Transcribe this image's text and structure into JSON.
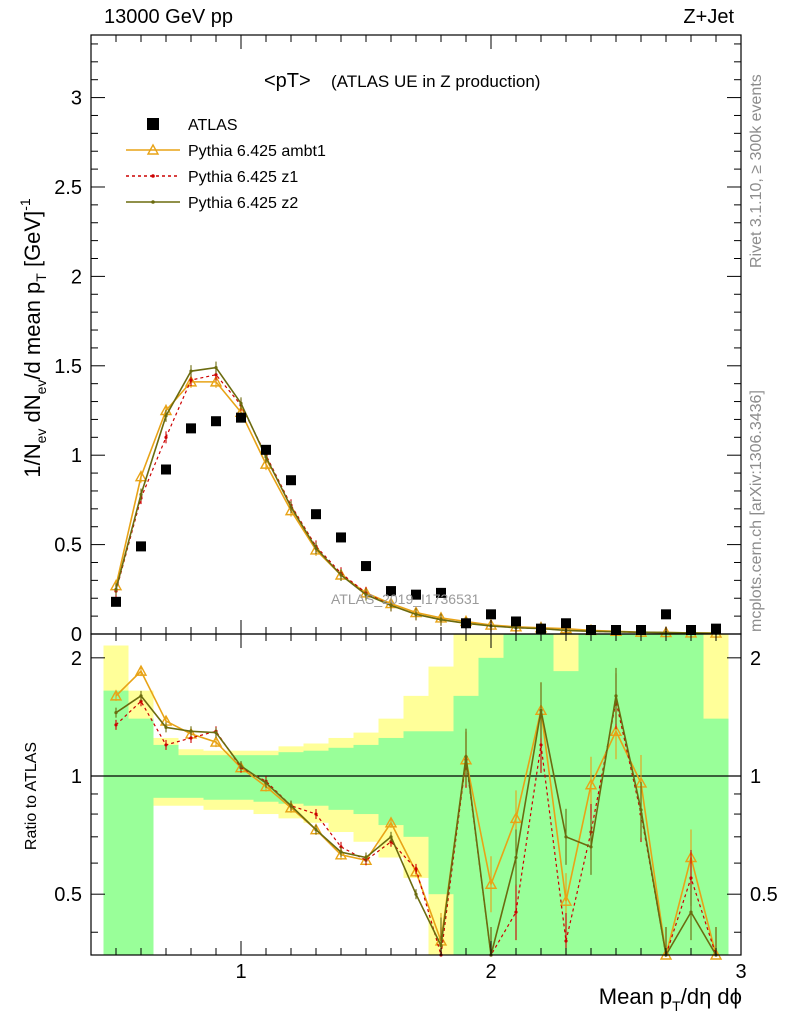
{
  "header": {
    "left": "13000 GeV pp",
    "right": "Z+Jet"
  },
  "side": {
    "rivet": "Rivet 3.1.10, ≥ 300k events",
    "mcplots": "mcplots.cern.ch [arXiv:1306.3436]"
  },
  "plot_title": {
    "main": "<pT>",
    "sub": "(ATLAS UE in Z production)"
  },
  "watermark": "ATLAS_2019_I1736531",
  "legend": [
    {
      "label": "ATLAS",
      "color": "#000000",
      "marker": "square"
    },
    {
      "label": "Pythia 6.425 ambt1",
      "color": "#e8a317",
      "marker": "triangle"
    },
    {
      "label": "Pythia 6.425 z1",
      "color": "#cc0000",
      "marker": "dot"
    },
    {
      "label": "Pythia 6.425 z2",
      "color": "#6b6b0f",
      "marker": "dot"
    }
  ],
  "colors": {
    "band_inner": "#99ff99",
    "band_outer": "#ffff99"
  },
  "chart_data": [
    {
      "type": "scatter",
      "panel": "main",
      "ylabel": "1/N_ev dN_ev/d mean p_T [GeV]^-1",
      "xlim": [
        0.4,
        3.0
      ],
      "ylim": [
        0,
        3.35
      ],
      "yticks": [
        0,
        0.5,
        1,
        1.5,
        2,
        2.5,
        3
      ],
      "ytick_labels": [
        "0",
        "0.5",
        "1",
        "1.5",
        "2",
        "2.5",
        "3"
      ],
      "x": [
        0.5,
        0.6,
        0.7,
        0.8,
        0.9,
        1.0,
        1.1,
        1.2,
        1.3,
        1.4,
        1.5,
        1.6,
        1.7,
        1.8,
        1.9,
        2.0,
        2.1,
        2.2,
        2.3,
        2.4,
        2.5,
        2.6,
        2.7,
        2.8,
        2.9
      ],
      "series": [
        {
          "name": "ATLAS",
          "values": [
            0.18,
            0.49,
            0.92,
            1.15,
            1.19,
            1.21,
            1.03,
            0.86,
            0.67,
            0.54,
            0.38,
            0.24,
            0.22,
            0.23,
            0.06,
            0.11,
            0.07,
            0.03,
            0.06,
            0.02,
            0.01,
            0.01,
            0.11,
            0.01,
            0.03
          ]
        },
        {
          "name": "Pythia 6.425 ambt1",
          "values": [
            0.27,
            0.88,
            1.25,
            1.41,
            1.41,
            1.24,
            0.95,
            0.69,
            0.47,
            0.33,
            0.23,
            0.17,
            0.12,
            0.09,
            0.07,
            0.05,
            0.04,
            0.035,
            0.03,
            0.02,
            0.015,
            0.01,
            0.008,
            0.006,
            0.005
          ]
        },
        {
          "name": "Pythia 6.425 z1",
          "values": [
            0.24,
            0.76,
            1.1,
            1.42,
            1.45,
            1.28,
            1.0,
            0.72,
            0.49,
            0.34,
            0.23,
            0.16,
            0.11,
            0.08,
            0.06,
            0.045,
            0.035,
            0.03,
            0.02,
            0.015,
            0.012,
            0.01,
            0.008,
            0.006,
            0.004
          ]
        },
        {
          "name": "Pythia 6.425 z2",
          "values": [
            0.25,
            0.78,
            1.22,
            1.47,
            1.49,
            1.29,
            0.99,
            0.71,
            0.48,
            0.33,
            0.22,
            0.16,
            0.11,
            0.08,
            0.06,
            0.045,
            0.035,
            0.03,
            0.02,
            0.015,
            0.012,
            0.01,
            0.008,
            0.006,
            0.004
          ]
        }
      ]
    },
    {
      "type": "line",
      "panel": "ratio",
      "ylabel": "Ratio to ATLAS",
      "xlabel": "Mean p_T/dη dϕ",
      "xlim": [
        0.4,
        3.0
      ],
      "ylim": [
        0.35,
        2.3
      ],
      "xticks": [
        1,
        2,
        3
      ],
      "xtick_labels": [
        "1",
        "2",
        "3"
      ],
      "yticks": [
        0.5,
        1,
        2
      ],
      "ytick_labels": [
        "0.5",
        "1",
        "2"
      ],
      "x": [
        0.5,
        0.6,
        0.7,
        0.8,
        0.9,
        1.0,
        1.1,
        1.2,
        1.3,
        1.4,
        1.5,
        1.6,
        1.7,
        1.8,
        1.9,
        2.0,
        2.1,
        2.2,
        2.3,
        2.4,
        2.5,
        2.6,
        2.7,
        2.8,
        2.9
      ],
      "bands": {
        "inner_lo": [
          0.35,
          0.35,
          0.88,
          0.88,
          0.87,
          0.87,
          0.86,
          0.85,
          0.84,
          0.82,
          0.8,
          0.75,
          0.7,
          0.5,
          0.35,
          0.35,
          0.35,
          0.35,
          0.35,
          0.35,
          0.35,
          0.35,
          0.35,
          0.35,
          0.35
        ],
        "inner_hi": [
          1.65,
          1.4,
          1.2,
          1.13,
          1.13,
          1.13,
          1.13,
          1.15,
          1.16,
          1.18,
          1.2,
          1.25,
          1.3,
          1.3,
          1.6,
          2.0,
          2.3,
          2.3,
          1.85,
          2.3,
          2.3,
          2.3,
          2.3,
          2.3,
          1.4
        ],
        "outer_lo": [
          0.35,
          0.35,
          0.84,
          0.84,
          0.82,
          0.82,
          0.8,
          0.78,
          0.76,
          0.72,
          0.68,
          0.62,
          0.55,
          0.35,
          0.35,
          0.35,
          0.35,
          0.35,
          0.35,
          0.35,
          0.35,
          0.35,
          0.35,
          0.35,
          0.35
        ],
        "outer_hi": [
          2.15,
          1.65,
          1.25,
          1.17,
          1.16,
          1.16,
          1.16,
          1.19,
          1.21,
          1.25,
          1.29,
          1.4,
          1.6,
          1.9,
          2.3,
          2.3,
          2.3,
          2.3,
          2.3,
          2.3,
          2.3,
          2.3,
          2.3,
          2.3,
          2.3
        ]
      },
      "series": [
        {
          "name": "Pythia 6.425 ambt1",
          "values": [
            1.6,
            1.85,
            1.38,
            1.28,
            1.22,
            1.05,
            0.94,
            0.83,
            0.73,
            0.63,
            0.61,
            0.76,
            0.57,
            0.38,
            1.1,
            0.53,
            0.78,
            1.47,
            0.48,
            0.95,
            1.3,
            0.96,
            0.2,
            0.62,
            0.2
          ]
        },
        {
          "name": "Pythia 6.425 z1",
          "values": [
            1.35,
            1.55,
            1.2,
            1.25,
            1.3,
            1.05,
            0.97,
            0.84,
            0.8,
            0.66,
            0.61,
            0.68,
            0.58,
            0.35,
            1.1,
            0.3,
            0.45,
            1.2,
            0.38,
            0.72,
            1.55,
            0.8,
            0.2,
            0.55,
            0.2
          ]
        },
        {
          "name": "Pythia 6.425 z2",
          "values": [
            1.45,
            1.6,
            1.33,
            1.3,
            1.29,
            1.06,
            0.96,
            0.84,
            0.73,
            0.64,
            0.62,
            0.7,
            0.5,
            0.37,
            1.12,
            0.3,
            0.62,
            1.47,
            0.7,
            0.66,
            1.6,
            0.82,
            0.2,
            0.45,
            0.3
          ]
        }
      ]
    }
  ]
}
